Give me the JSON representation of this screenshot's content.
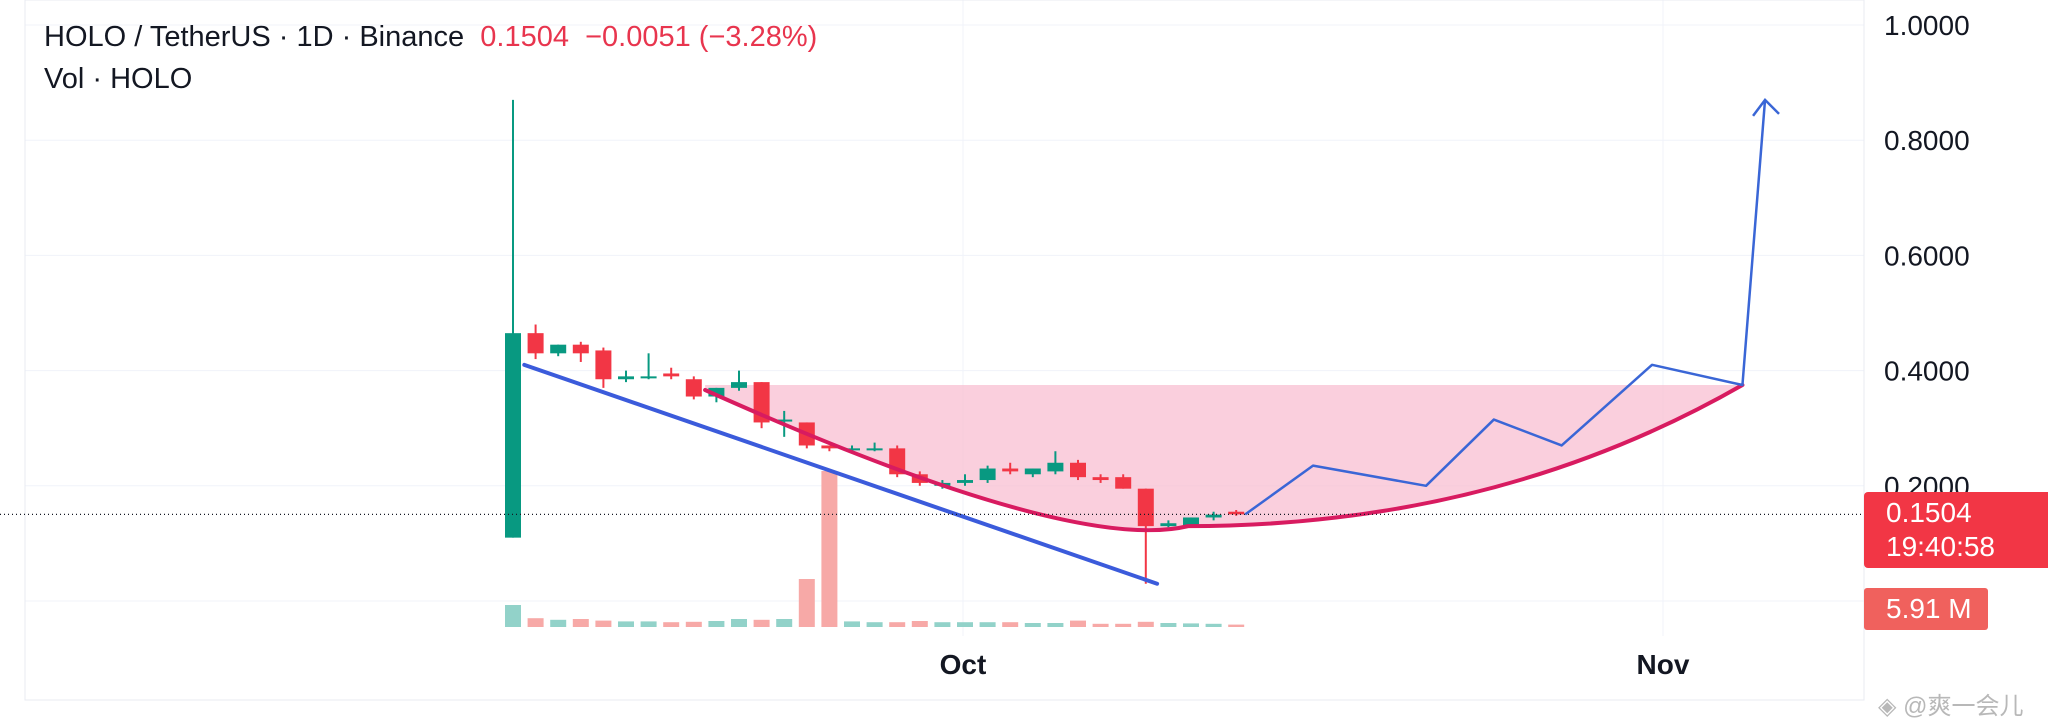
{
  "header": {
    "symbol": "HOLO / TetherUS · 1D · Binance",
    "last": "0.1504",
    "change": "−0.0051",
    "change_pct": "(−3.28%)",
    "volume_label": "Vol · HOLO"
  },
  "price_tag": {
    "price": "0.1504",
    "countdown": "19:40:58"
  },
  "volume_tag": "5.91 M",
  "watermark": "爽一会儿",
  "colors": {
    "up": "#089981",
    "down": "#f23645",
    "pattern_fill": "#f8bcd0",
    "cup_line": "#d81b60",
    "trend_line": "#3b5bdb",
    "projection_line": "#3a66d6"
  },
  "chart_data": {
    "type": "candlestick",
    "title": "",
    "xlabel": "",
    "ylabel": "",
    "ylim": [
      -0.1,
      1.05
    ],
    "y_ticks": [
      "1.0000",
      "0.8000",
      "0.6000",
      "0.4000",
      "0.2000"
    ],
    "x_ticks": [
      "Oct",
      "Nov"
    ],
    "grid": true,
    "current_price": 0.1504,
    "candles": [
      {
        "o": 0.11,
        "h": 0.87,
        "l": 0.11,
        "c": 0.465
      },
      {
        "o": 0.465,
        "h": 0.48,
        "l": 0.42,
        "c": 0.43
      },
      {
        "o": 0.43,
        "h": 0.445,
        "l": 0.425,
        "c": 0.445
      },
      {
        "o": 0.445,
        "h": 0.45,
        "l": 0.415,
        "c": 0.43
      },
      {
        "o": 0.435,
        "h": 0.44,
        "l": 0.37,
        "c": 0.385
      },
      {
        "o": 0.385,
        "h": 0.4,
        "l": 0.38,
        "c": 0.39
      },
      {
        "o": 0.39,
        "h": 0.43,
        "l": 0.385,
        "c": 0.39
      },
      {
        "o": 0.395,
        "h": 0.405,
        "l": 0.385,
        "c": 0.39
      },
      {
        "o": 0.385,
        "h": 0.39,
        "l": 0.35,
        "c": 0.355
      },
      {
        "o": 0.355,
        "h": 0.37,
        "l": 0.345,
        "c": 0.37
      },
      {
        "o": 0.37,
        "h": 0.4,
        "l": 0.365,
        "c": 0.38
      },
      {
        "o": 0.38,
        "h": 0.38,
        "l": 0.3,
        "c": 0.31
      },
      {
        "o": 0.315,
        "h": 0.33,
        "l": 0.285,
        "c": 0.315
      },
      {
        "o": 0.31,
        "h": 0.31,
        "l": 0.265,
        "c": 0.27
      },
      {
        "o": 0.27,
        "h": 0.27,
        "l": 0.26,
        "c": 0.265
      },
      {
        "o": 0.265,
        "h": 0.27,
        "l": 0.26,
        "c": 0.265
      },
      {
        "o": 0.265,
        "h": 0.275,
        "l": 0.26,
        "c": 0.265
      },
      {
        "o": 0.265,
        "h": 0.27,
        "l": 0.215,
        "c": 0.22
      },
      {
        "o": 0.22,
        "h": 0.225,
        "l": 0.2,
        "c": 0.205
      },
      {
        "o": 0.2,
        "h": 0.21,
        "l": 0.195,
        "c": 0.205
      },
      {
        "o": 0.205,
        "h": 0.22,
        "l": 0.2,
        "c": 0.21
      },
      {
        "o": 0.21,
        "h": 0.235,
        "l": 0.205,
        "c": 0.23
      },
      {
        "o": 0.23,
        "h": 0.24,
        "l": 0.22,
        "c": 0.225
      },
      {
        "o": 0.22,
        "h": 0.23,
        "l": 0.215,
        "c": 0.23
      },
      {
        "o": 0.225,
        "h": 0.26,
        "l": 0.22,
        "c": 0.24
      },
      {
        "o": 0.24,
        "h": 0.245,
        "l": 0.21,
        "c": 0.215
      },
      {
        "o": 0.215,
        "h": 0.22,
        "l": 0.205,
        "c": 0.21
      },
      {
        "o": 0.215,
        "h": 0.22,
        "l": 0.195,
        "c": 0.195
      },
      {
        "o": 0.195,
        "h": 0.195,
        "l": 0.03,
        "c": 0.13
      },
      {
        "o": 0.13,
        "h": 0.14,
        "l": 0.128,
        "c": 0.135
      },
      {
        "o": 0.13,
        "h": 0.145,
        "l": 0.128,
        "c": 0.145
      },
      {
        "o": 0.145,
        "h": 0.155,
        "l": 0.14,
        "c": 0.15
      },
      {
        "o": 0.155,
        "h": 0.158,
        "l": 0.148,
        "c": 0.1504
      }
    ],
    "volume": [
      0.55,
      0.22,
      0.18,
      0.2,
      0.16,
      0.14,
      0.14,
      0.12,
      0.13,
      0.15,
      0.2,
      0.18,
      0.2,
      1.2,
      3.9,
      0.14,
      0.12,
      0.12,
      0.15,
      0.12,
      0.12,
      0.12,
      0.12,
      0.1,
      0.1,
      0.16,
      0.08,
      0.08,
      0.13,
      0.1,
      0.09,
      0.08,
      0.06
    ],
    "annotations": {
      "descending_trendline": [
        [
          0.5,
          0.41
        ],
        [
          28.5,
          0.03
        ]
      ],
      "cup_rim_price": 0.375,
      "cup_bottom_price": 0.13,
      "projection_path": [
        [
          32.4,
          0.1504
        ],
        [
          35.4,
          0.235
        ],
        [
          40.4,
          0.2
        ],
        [
          43.4,
          0.315
        ],
        [
          46.4,
          0.27
        ],
        [
          50.4,
          0.41
        ],
        [
          54.4,
          0.375
        ],
        [
          55.4,
          0.87
        ]
      ]
    }
  }
}
